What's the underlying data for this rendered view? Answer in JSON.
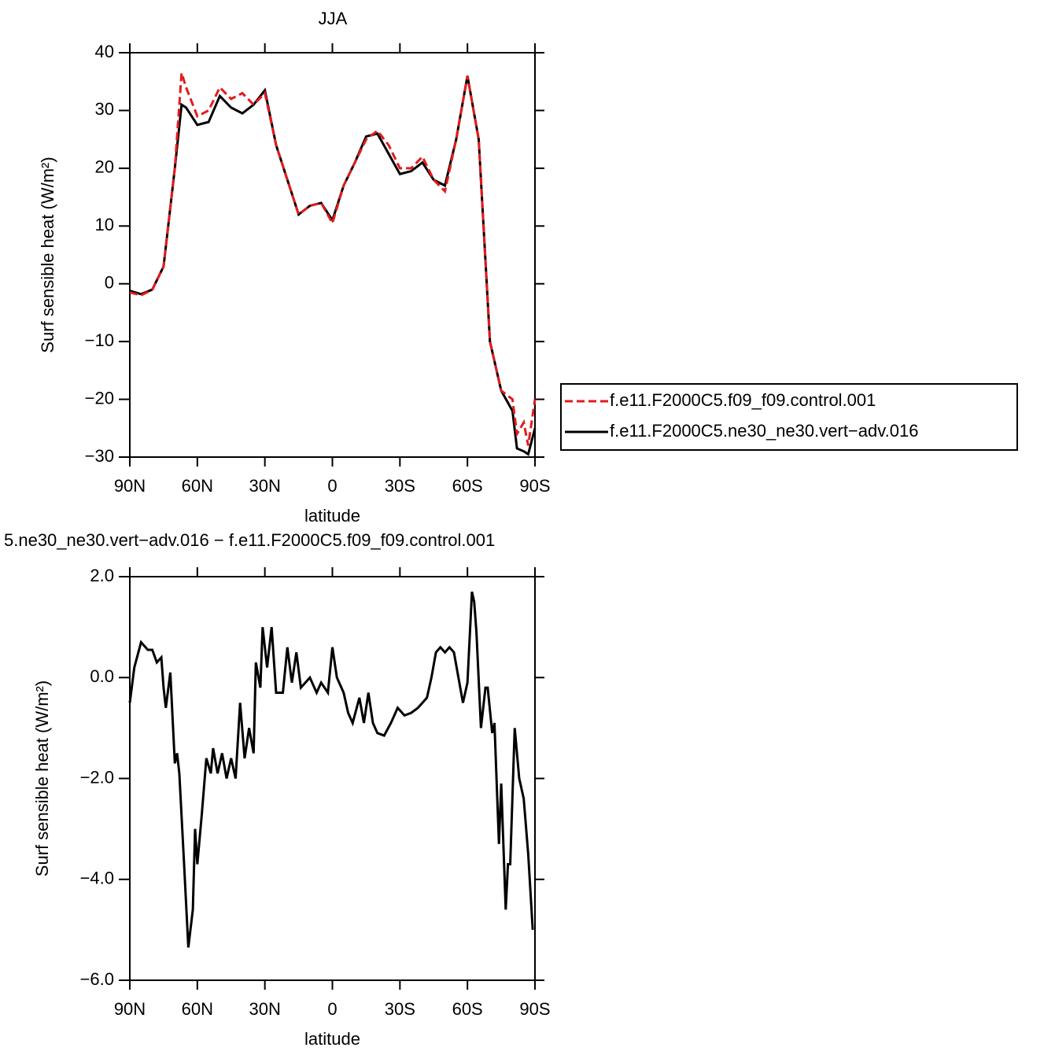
{
  "chart_data": [
    {
      "type": "line",
      "title": "JJA",
      "xlabel": "latitude",
      "ylabel": "Surf sensible heat (W/m²)",
      "x": [
        90,
        85,
        80,
        75,
        70,
        67,
        65,
        60,
        55,
        50,
        45,
        40,
        35,
        30,
        25,
        20,
        15,
        10,
        5,
        0,
        -5,
        -10,
        -15,
        -20,
        -25,
        -30,
        -35,
        -40,
        -45,
        -50,
        -55,
        -60,
        -65,
        -70,
        -75,
        -80,
        -82,
        -85,
        -87,
        -90
      ],
      "series": [
        {
          "name": "f.e11.F2000C5.f09_f09.control.001",
          "color": "#e41a1c",
          "linestyle": "dashed",
          "values": [
            -1.5,
            -2,
            -1,
            3,
            20,
            36.5,
            34,
            29,
            30,
            34,
            32,
            33,
            31,
            33,
            24,
            18,
            12,
            13.5,
            14,
            10.5,
            17,
            21,
            25,
            26.5,
            24,
            20,
            20,
            22,
            18,
            16,
            25,
            36,
            25,
            -10,
            -18.5,
            -20,
            -26,
            -24,
            -28,
            -20
          ]
        },
        {
          "name": "f.e11.F2000C5.ne30_ne30.vert−adv.016",
          "color": "#000000",
          "linestyle": "solid",
          "values": [
            -1.2,
            -1.8,
            -1,
            3,
            20,
            31,
            30.5,
            27.5,
            28,
            32.5,
            30.5,
            29.5,
            31,
            33.5,
            24,
            18,
            12,
            13.5,
            14,
            11,
            17,
            21,
            25.5,
            26,
            22.5,
            19,
            19.5,
            21,
            18,
            17,
            25,
            36,
            25,
            -10,
            -18.5,
            -22,
            -28.5,
            -29,
            -29.5,
            -25
          ]
        }
      ],
      "xlim": [
        90,
        -90
      ],
      "xticks": [
        {
          "value": 90,
          "label": "90N"
        },
        {
          "value": 60,
          "label": "60N"
        },
        {
          "value": 30,
          "label": "30N"
        },
        0,
        {
          "value": -30,
          "label": "30S"
        },
        {
          "value": -60,
          "label": "60S"
        },
        {
          "value": -90,
          "label": "90S"
        }
      ],
      "ylim": [
        -30,
        40
      ],
      "yticks": [
        {
          "value": -30,
          "label": "−30"
        },
        {
          "value": -20,
          "label": "−20"
        },
        {
          "value": -10,
          "label": "−10"
        },
        0,
        10,
        20,
        30,
        40
      ],
      "legend": "right"
    },
    {
      "type": "line",
      "title": "5.ne30_ne30.vert−adv.016 − f.e11.F2000C5.f09_f09.control.001",
      "xlabel": "latitude",
      "ylabel": "Surf sensible heat (W/m²)",
      "x": [
        90,
        88,
        85,
        82,
        80,
        78,
        76,
        75,
        74,
        72,
        70,
        69,
        68,
        66,
        64,
        62,
        61,
        60,
        58,
        56,
        54,
        53,
        51,
        49,
        47,
        45,
        43,
        41,
        39,
        37,
        35,
        34,
        32,
        31,
        29,
        27,
        25,
        22,
        20,
        18,
        16,
        14,
        10,
        7,
        5,
        2,
        0,
        -2,
        -5,
        -7,
        -9,
        -12,
        -14,
        -16,
        -18,
        -20,
        -23,
        -26,
        -29,
        -32,
        -35,
        -38,
        -42,
        -44,
        -46,
        -48,
        -50,
        -52,
        -54,
        -56,
        -58,
        -60,
        -62,
        -63,
        -64,
        -66,
        -68,
        -69,
        -71,
        -72,
        -74,
        -75,
        -77,
        -78,
        -79,
        -81,
        -83,
        -85,
        -87,
        -89
      ],
      "series": [
        {
          "color": "#000000",
          "linestyle": "solid",
          "values": [
            -0.5,
            0.2,
            0.7,
            0.55,
            0.55,
            0.3,
            0.4,
            -0.2,
            -0.6,
            0.1,
            -1.7,
            -1.5,
            -1.9,
            -3.6,
            -5.35,
            -4.6,
            -3.0,
            -3.7,
            -2.7,
            -1.6,
            -1.9,
            -1.4,
            -1.9,
            -1.5,
            -2.0,
            -1.6,
            -2.0,
            -0.5,
            -1.6,
            -1.0,
            -1.5,
            0.3,
            -0.2,
            1.0,
            0.2,
            1.0,
            -0.3,
            -0.3,
            0.6,
            -0.1,
            0.5,
            -0.2,
            0.0,
            -0.3,
            -0.1,
            -0.3,
            0.6,
            0.0,
            -0.3,
            -0.7,
            -0.9,
            -0.4,
            -0.9,
            -0.3,
            -0.9,
            -1.1,
            -1.15,
            -0.9,
            -0.6,
            -0.75,
            -0.7,
            -0.6,
            -0.4,
            0.0,
            0.5,
            0.6,
            0.5,
            0.6,
            0.5,
            0.0,
            -0.5,
            -0.1,
            1.7,
            1.5,
            0.9,
            -1.0,
            -0.2,
            -0.2,
            -1.1,
            -0.9,
            -3.3,
            -2.1,
            -4.6,
            -3.7,
            -3.7,
            -1.0,
            -2.0,
            -2.4,
            -3.5,
            -5.0
          ]
        }
      ],
      "xlim": [
        90,
        -90
      ],
      "xticks": [
        {
          "value": 90,
          "label": "90N"
        },
        {
          "value": 60,
          "label": "60N"
        },
        {
          "value": 30,
          "label": "30N"
        },
        0,
        {
          "value": -30,
          "label": "30S"
        },
        {
          "value": -60,
          "label": "60S"
        },
        {
          "value": -90,
          "label": "90S"
        }
      ],
      "ylim": [
        -6,
        2
      ],
      "yticks": [
        {
          "value": -6,
          "label": "−6.0"
        },
        {
          "value": -4,
          "label": "−4.0"
        },
        {
          "value": -2,
          "label": "−2.0"
        },
        {
          "value": 0,
          "label": "0.0"
        },
        {
          "value": 2,
          "label": "2.0"
        }
      ]
    }
  ]
}
